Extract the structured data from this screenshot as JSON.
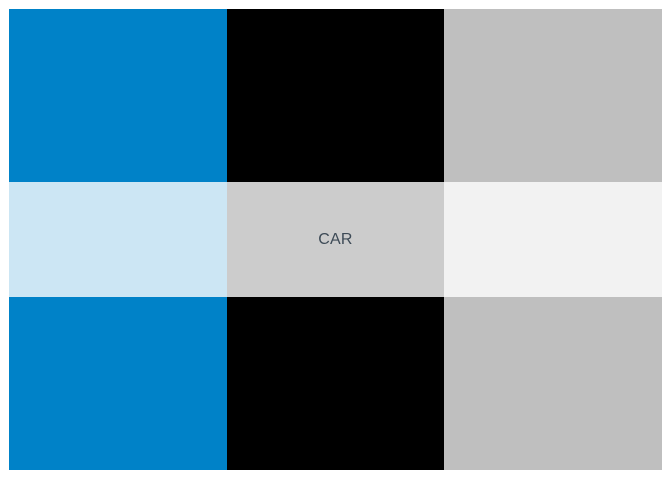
{
  "grid": {
    "rows": [
      {
        "cells": [
          {
            "color": "#0082c8",
            "text": ""
          },
          {
            "color": "#000000",
            "text": ""
          },
          {
            "color": "#bfbfbf",
            "text": ""
          }
        ]
      },
      {
        "cells": [
          {
            "color": "#cce6f4",
            "text": ""
          },
          {
            "color": "#cccccc",
            "text": "CAR"
          },
          {
            "color": "#f2f2f2",
            "text": ""
          }
        ]
      },
      {
        "cells": [
          {
            "color": "#0082c8",
            "text": ""
          },
          {
            "color": "#000000",
            "text": ""
          },
          {
            "color": "#bfbfbf",
            "text": ""
          }
        ]
      }
    ]
  }
}
